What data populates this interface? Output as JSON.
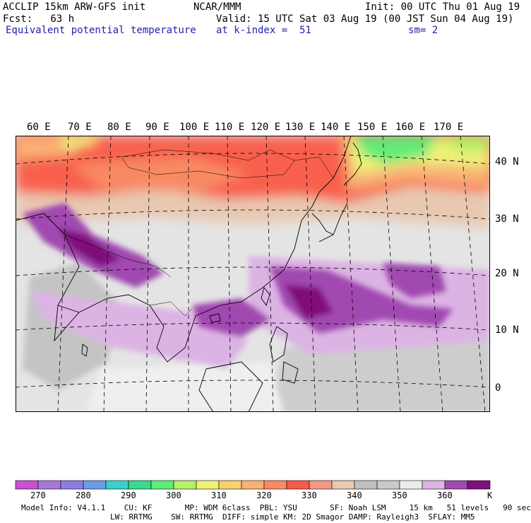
{
  "header": {
    "title": "ACCLIP 15km ARW-GFS init",
    "org": "NCAR/MMM",
    "init": "Init: 00 UTC Thu 01 Aug 19",
    "fcst": "Fcst:   63 h",
    "valid": "Valid: 15 UTC Sat 03 Aug 19 (00 JST Sun 04 Aug 19)",
    "field": "Equivalent potential temperature",
    "level": "at k-index =  51",
    "smooth": "sm= 2"
  },
  "axes": {
    "lon_labels": [
      "60 E",
      "70 E",
      "80 E",
      "90 E",
      "100 E",
      "110 E",
      "120 E",
      "130 E",
      "140 E",
      "150 E",
      "160 E",
      "170 E"
    ],
    "lat_labels": [
      "40 N",
      "30 N",
      "20 N",
      "10 N",
      "0"
    ]
  },
  "colorbar": {
    "colors": [
      "#c850d2",
      "#a878d8",
      "#8c7ce4",
      "#6c9ce8",
      "#3ccfc8",
      "#3cd890",
      "#60ec78",
      "#b4f068",
      "#f0f078",
      "#f8d070",
      "#f8b074",
      "#f88a64",
      "#f85a4c",
      "#f09a84",
      "#e8c8b0",
      "#c0c0c0",
      "#cacaca",
      "#ececec",
      "#dcb4e4",
      "#a04ab0",
      "#80107a"
    ],
    "ticks": [
      "270",
      "280",
      "290",
      "300",
      "310",
      "320",
      "330",
      "340",
      "350",
      "360"
    ],
    "unit": "K"
  },
  "model_info": {
    "line1": "Model Info: V4.1.1    CU: KF       MP: WDM 6class  PBL: YSU       SF: Noah LSM     15 km   51 levels   90 sec",
    "line2": "LW: RRTMG    SW: RRTMG  DIFF: simple KM: 2D Smagor DAMP: Rayleigh3  SFLAY: MM5"
  }
}
